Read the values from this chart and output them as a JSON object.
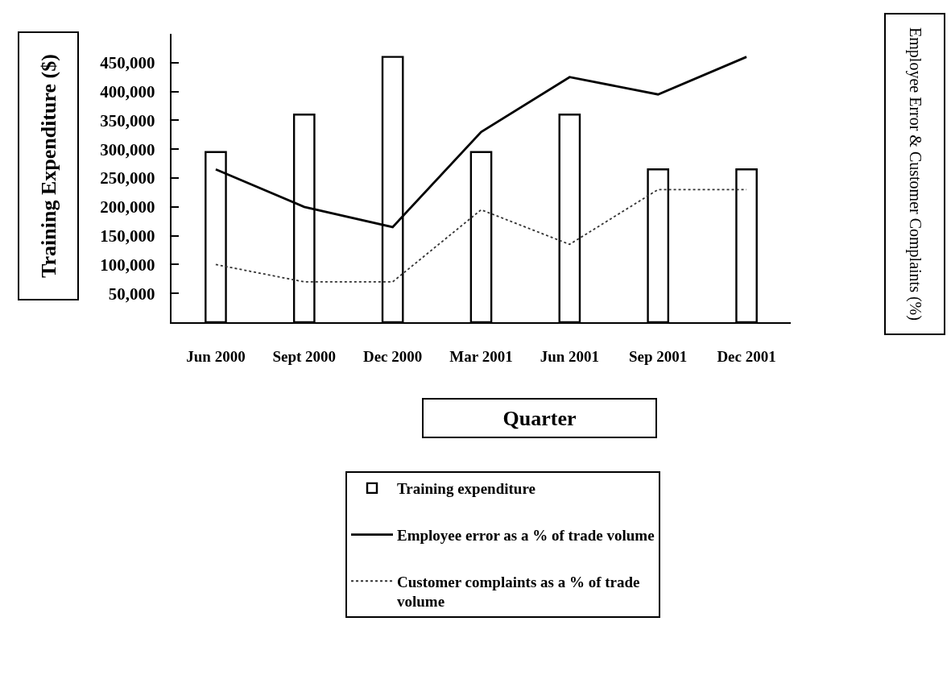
{
  "chart_data": {
    "type": "bar",
    "ylabel": "Training Expenditure ($)",
    "xlabel": "Quarter",
    "annotations": [
      "Employee Error & Customer Complaints (%)"
    ],
    "categories": [
      "Jun 2000",
      "Sept 2000",
      "Dec 2000",
      "Mar 2001",
      "Jun 2001",
      "Sep 2001",
      "Dec 2001"
    ],
    "series": [
      {
        "name": "Training expenditure",
        "color": "#ffffff",
        "values": [
          295000,
          360000,
          460000,
          295000,
          360000,
          265000,
          265000
        ]
      },
      {
        "name": "Employee error as a % of trade volume",
        "type": "line",
        "color": "#000000",
        "line_style": "solid",
        "values": [
          265000,
          200000,
          165000,
          330000,
          425000,
          395000,
          460000
        ]
      },
      {
        "name": "Customer complaints as a % of trade volume",
        "type": "line",
        "color": "#333333",
        "line_style": "dotted",
        "values": [
          100000,
          70000,
          70000,
          195000,
          135000,
          230000,
          230000
        ]
      }
    ],
    "ylim": [
      0,
      500000
    ],
    "yticks": [
      {
        "value": 50000,
        "label": "50,000"
      },
      {
        "value": 100000,
        "label": "100,000"
      },
      {
        "value": 150000,
        "label": "150,000"
      },
      {
        "value": 200000,
        "label": "200,000"
      },
      {
        "value": 250000,
        "label": "250,000"
      },
      {
        "value": 300000,
        "label": "300,000"
      },
      {
        "value": 350000,
        "label": "350,000"
      },
      {
        "value": 400000,
        "label": "400,000"
      },
      {
        "value": 450000,
        "label": "450,000"
      }
    ],
    "grid": false,
    "legend": "bottom",
    "marker": "none"
  }
}
